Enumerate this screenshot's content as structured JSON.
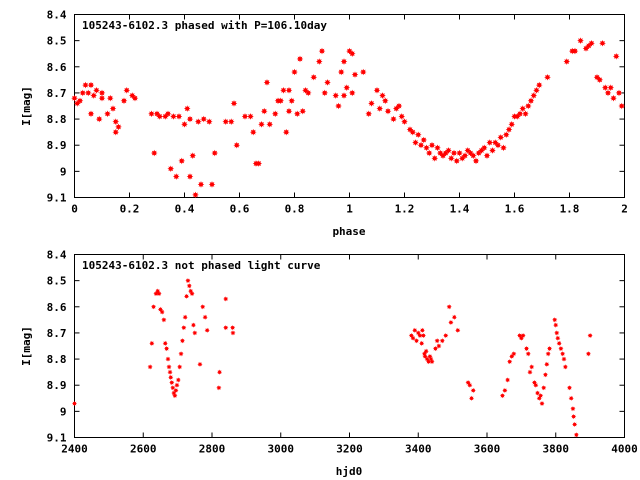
{
  "chart_data": [
    {
      "type": "scatter",
      "title": "105243-6102.3 phased with P=106.10day",
      "xlabel": "phase",
      "ylabel": "I[mag]",
      "xlim": [
        0,
        2
      ],
      "ylim": [
        8.4,
        9.1
      ],
      "y_inverted": true,
      "xticks": [
        0,
        0.2,
        0.4,
        0.6,
        0.8,
        1,
        1.2,
        1.4,
        1.6,
        1.8,
        2
      ],
      "xtick_labels": [
        "0",
        "0.2",
        "0.4",
        "0.6",
        "0.8",
        "1",
        "1.2",
        "1.4",
        "1.6",
        "1.8",
        "2"
      ],
      "yticks": [
        8.4,
        8.5,
        8.6,
        8.7,
        8.8,
        8.9,
        9.0,
        9.1
      ],
      "ytick_labels": [
        "8.4",
        "8.5",
        "8.6",
        "8.7",
        "8.8",
        "8.9",
        "9",
        "9.1"
      ],
      "grid": false,
      "marker": "filled-star",
      "color": "#ff0000",
      "points": [
        [
          0.0,
          8.72
        ],
        [
          0.01,
          8.74
        ],
        [
          0.02,
          8.73
        ],
        [
          0.03,
          8.7
        ],
        [
          0.04,
          8.67
        ],
        [
          0.05,
          8.7
        ],
        [
          0.06,
          8.67
        ],
        [
          0.06,
          8.78
        ],
        [
          0.07,
          8.71
        ],
        [
          0.08,
          8.69
        ],
        [
          0.09,
          8.8
        ],
        [
          0.1,
          8.72
        ],
        [
          0.1,
          8.7
        ],
        [
          0.12,
          8.78
        ],
        [
          0.13,
          8.72
        ],
        [
          0.14,
          8.76
        ],
        [
          0.15,
          8.81
        ],
        [
          0.15,
          8.85
        ],
        [
          0.16,
          8.83
        ],
        [
          0.18,
          8.73
        ],
        [
          0.19,
          8.69
        ],
        [
          0.21,
          8.71
        ],
        [
          0.22,
          8.72
        ],
        [
          0.28,
          8.78
        ],
        [
          0.29,
          8.93
        ],
        [
          0.3,
          8.78
        ],
        [
          0.31,
          8.79
        ],
        [
          0.33,
          8.79
        ],
        [
          0.34,
          8.78
        ],
        [
          0.35,
          8.99
        ],
        [
          0.36,
          8.79
        ],
        [
          0.37,
          9.02
        ],
        [
          0.38,
          8.79
        ],
        [
          0.39,
          8.96
        ],
        [
          0.4,
          8.82
        ],
        [
          0.41,
          8.76
        ],
        [
          0.42,
          8.8
        ],
        [
          0.42,
          9.02
        ],
        [
          0.43,
          8.94
        ],
        [
          0.44,
          9.09
        ],
        [
          0.45,
          8.81
        ],
        [
          0.46,
          9.05
        ],
        [
          0.47,
          8.8
        ],
        [
          0.49,
          8.81
        ],
        [
          0.5,
          9.05
        ],
        [
          0.51,
          8.93
        ],
        [
          0.55,
          8.81
        ],
        [
          0.57,
          8.81
        ],
        [
          0.58,
          8.74
        ],
        [
          0.59,
          8.9
        ],
        [
          0.62,
          8.79
        ],
        [
          0.64,
          8.79
        ],
        [
          0.65,
          8.85
        ],
        [
          0.66,
          8.97
        ],
        [
          0.67,
          8.97
        ],
        [
          0.68,
          8.82
        ],
        [
          0.69,
          8.77
        ],
        [
          0.7,
          8.66
        ],
        [
          0.71,
          8.82
        ],
        [
          0.73,
          8.78
        ],
        [
          0.74,
          8.73
        ],
        [
          0.75,
          8.73
        ],
        [
          0.76,
          8.69
        ],
        [
          0.77,
          8.85
        ],
        [
          0.78,
          8.69
        ],
        [
          0.78,
          8.77
        ],
        [
          0.79,
          8.73
        ],
        [
          0.8,
          8.62
        ],
        [
          0.81,
          8.78
        ],
        [
          0.82,
          8.57
        ],
        [
          0.83,
          8.77
        ],
        [
          0.84,
          8.69
        ],
        [
          0.85,
          8.7
        ],
        [
          0.87,
          8.64
        ],
        [
          0.89,
          8.58
        ],
        [
          0.9,
          8.54
        ],
        [
          0.91,
          8.7
        ],
        [
          0.92,
          8.66
        ],
        [
          0.95,
          8.71
        ],
        [
          0.96,
          8.75
        ],
        [
          0.97,
          8.62
        ],
        [
          0.98,
          8.71
        ],
        [
          0.98,
          8.58
        ],
        [
          0.99,
          8.68
        ],
        [
          1.0,
          8.54
        ],
        [
          1.01,
          8.55
        ],
        [
          1.01,
          8.7
        ],
        [
          1.02,
          8.63
        ],
        [
          1.05,
          8.62
        ],
        [
          1.07,
          8.78
        ],
        [
          1.08,
          8.74
        ],
        [
          1.1,
          8.69
        ],
        [
          1.11,
          8.76
        ],
        [
          1.12,
          8.71
        ],
        [
          1.13,
          8.73
        ],
        [
          1.14,
          8.77
        ],
        [
          1.16,
          8.8
        ],
        [
          1.17,
          8.76
        ],
        [
          1.18,
          8.75
        ],
        [
          1.19,
          8.79
        ],
        [
          1.2,
          8.81
        ],
        [
          1.22,
          8.84
        ],
        [
          1.23,
          8.85
        ],
        [
          1.24,
          8.89
        ],
        [
          1.25,
          8.86
        ],
        [
          1.26,
          8.9
        ],
        [
          1.27,
          8.88
        ],
        [
          1.28,
          8.91
        ],
        [
          1.29,
          8.93
        ],
        [
          1.3,
          8.9
        ],
        [
          1.31,
          8.95
        ],
        [
          1.32,
          8.91
        ],
        [
          1.33,
          8.93
        ],
        [
          1.34,
          8.94
        ],
        [
          1.35,
          8.93
        ],
        [
          1.36,
          8.92
        ],
        [
          1.37,
          8.95
        ],
        [
          1.38,
          8.93
        ],
        [
          1.39,
          8.96
        ],
        [
          1.4,
          8.93
        ],
        [
          1.41,
          8.95
        ],
        [
          1.42,
          8.94
        ],
        [
          1.43,
          8.92
        ],
        [
          1.44,
          8.93
        ],
        [
          1.45,
          8.94
        ],
        [
          1.46,
          8.96
        ],
        [
          1.47,
          8.93
        ],
        [
          1.48,
          8.92
        ],
        [
          1.49,
          8.91
        ],
        [
          1.5,
          8.94
        ],
        [
          1.51,
          8.89
        ],
        [
          1.52,
          8.92
        ],
        [
          1.53,
          8.89
        ],
        [
          1.54,
          8.9
        ],
        [
          1.55,
          8.87
        ],
        [
          1.56,
          8.91
        ],
        [
          1.57,
          8.86
        ],
        [
          1.58,
          8.84
        ],
        [
          1.59,
          8.82
        ],
        [
          1.6,
          8.79
        ],
        [
          1.61,
          8.79
        ],
        [
          1.62,
          8.78
        ],
        [
          1.63,
          8.76
        ],
        [
          1.64,
          8.78
        ],
        [
          1.65,
          8.75
        ],
        [
          1.66,
          8.73
        ],
        [
          1.67,
          8.71
        ],
        [
          1.68,
          8.69
        ],
        [
          1.69,
          8.67
        ],
        [
          1.72,
          8.64
        ],
        [
          1.79,
          8.58
        ],
        [
          1.81,
          8.54
        ],
        [
          1.82,
          8.54
        ],
        [
          1.84,
          8.5
        ],
        [
          1.86,
          8.53
        ],
        [
          1.87,
          8.52
        ],
        [
          1.88,
          8.51
        ],
        [
          1.9,
          8.64
        ],
        [
          1.91,
          8.65
        ],
        [
          1.92,
          8.51
        ],
        [
          1.93,
          8.68
        ],
        [
          1.94,
          8.7
        ],
        [
          1.95,
          8.68
        ],
        [
          1.96,
          8.72
        ],
        [
          1.97,
          8.56
        ],
        [
          1.98,
          8.7
        ],
        [
          1.99,
          8.75
        ]
      ]
    },
    {
      "type": "scatter",
      "title": "105243-6102.3 not phased light curve",
      "xlabel": "hjd0",
      "ylabel": "I[mag]",
      "xlim": [
        2400,
        4000
      ],
      "ylim": [
        8.4,
        9.1
      ],
      "y_inverted": true,
      "xticks": [
        2400,
        2600,
        2800,
        3000,
        3200,
        3400,
        3600,
        3800,
        4000
      ],
      "xtick_labels": [
        "2400",
        "2600",
        "2800",
        "3000",
        "3200",
        "3400",
        "3600",
        "3800",
        "4000"
      ],
      "yticks": [
        8.4,
        8.5,
        8.6,
        8.7,
        8.8,
        8.9,
        9.0,
        9.1
      ],
      "ytick_labels": [
        "8.4",
        "8.5",
        "8.6",
        "8.7",
        "8.8",
        "8.9",
        "9",
        "9.1"
      ],
      "grid": false,
      "marker": "small-filled-star",
      "color": "#ff0000",
      "points": [
        [
          2400,
          8.97
        ],
        [
          2620,
          8.83
        ],
        [
          2625,
          8.74
        ],
        [
          2630,
          8.6
        ],
        [
          2637,
          8.55
        ],
        [
          2642,
          8.54
        ],
        [
          2646,
          8.55
        ],
        [
          2650,
          8.61
        ],
        [
          2655,
          8.62
        ],
        [
          2660,
          8.65
        ],
        [
          2664,
          8.74
        ],
        [
          2668,
          8.76
        ],
        [
          2672,
          8.8
        ],
        [
          2675,
          8.83
        ],
        [
          2678,
          8.85
        ],
        [
          2680,
          8.87
        ],
        [
          2683,
          8.89
        ],
        [
          2686,
          8.91
        ],
        [
          2689,
          8.93
        ],
        [
          2692,
          8.94
        ],
        [
          2695,
          8.92
        ],
        [
          2698,
          8.9
        ],
        [
          2702,
          8.88
        ],
        [
          2706,
          8.83
        ],
        [
          2710,
          8.78
        ],
        [
          2714,
          8.73
        ],
        [
          2718,
          8.68
        ],
        [
          2722,
          8.64
        ],
        [
          2726,
          8.56
        ],
        [
          2730,
          8.5
        ],
        [
          2734,
          8.52
        ],
        [
          2738,
          8.54
        ],
        [
          2742,
          8.55
        ],
        [
          2746,
          8.67
        ],
        [
          2750,
          8.7
        ],
        [
          2765,
          8.82
        ],
        [
          2773,
          8.6
        ],
        [
          2780,
          8.64
        ],
        [
          2786,
          8.69
        ],
        [
          2820,
          8.91
        ],
        [
          2822,
          8.85
        ],
        [
          2840,
          8.57
        ],
        [
          2840,
          8.68
        ],
        [
          2860,
          8.68
        ],
        [
          2861,
          8.7
        ],
        [
          3380,
          8.71
        ],
        [
          3385,
          8.72
        ],
        [
          3390,
          8.69
        ],
        [
          3395,
          8.73
        ],
        [
          3400,
          8.7
        ],
        [
          3405,
          8.71
        ],
        [
          3410,
          8.74
        ],
        [
          3412,
          8.69
        ],
        [
          3415,
          8.71
        ],
        [
          3418,
          8.78
        ],
        [
          3420,
          8.79
        ],
        [
          3423,
          8.77
        ],
        [
          3426,
          8.8
        ],
        [
          3430,
          8.81
        ],
        [
          3434,
          8.79
        ],
        [
          3437,
          8.8
        ],
        [
          3440,
          8.81
        ],
        [
          3450,
          8.76
        ],
        [
          3455,
          8.73
        ],
        [
          3460,
          8.75
        ],
        [
          3470,
          8.73
        ],
        [
          3480,
          8.71
        ],
        [
          3490,
          8.6
        ],
        [
          3495,
          8.66
        ],
        [
          3505,
          8.64
        ],
        [
          3515,
          8.69
        ],
        [
          3545,
          8.89
        ],
        [
          3550,
          8.9
        ],
        [
          3555,
          8.95
        ],
        [
          3560,
          8.92
        ],
        [
          3645,
          8.94
        ],
        [
          3652,
          8.92
        ],
        [
          3660,
          8.88
        ],
        [
          3666,
          8.81
        ],
        [
          3672,
          8.79
        ],
        [
          3678,
          8.78
        ],
        [
          3695,
          8.71
        ],
        [
          3700,
          8.72
        ],
        [
          3705,
          8.71
        ],
        [
          3715,
          8.76
        ],
        [
          3720,
          8.78
        ],
        [
          3725,
          8.85
        ],
        [
          3730,
          8.83
        ],
        [
          3738,
          8.89
        ],
        [
          3742,
          8.9
        ],
        [
          3747,
          8.93
        ],
        [
          3752,
          8.95
        ],
        [
          3756,
          8.94
        ],
        [
          3760,
          8.97
        ],
        [
          3765,
          8.91
        ],
        [
          3770,
          8.86
        ],
        [
          3774,
          8.82
        ],
        [
          3778,
          8.78
        ],
        [
          3782,
          8.76
        ],
        [
          3797,
          8.65
        ],
        [
          3800,
          8.67
        ],
        [
          3803,
          8.7
        ],
        [
          3806,
          8.72
        ],
        [
          3810,
          8.74
        ],
        [
          3815,
          8.76
        ],
        [
          3820,
          8.78
        ],
        [
          3824,
          8.8
        ],
        [
          3828,
          8.83
        ],
        [
          3840,
          8.91
        ],
        [
          3845,
          8.95
        ],
        [
          3850,
          8.99
        ],
        [
          3852,
          9.02
        ],
        [
          3855,
          9.05
        ],
        [
          3860,
          9.09
        ],
        [
          3895,
          8.78
        ],
        [
          3900,
          8.71
        ]
      ]
    }
  ]
}
